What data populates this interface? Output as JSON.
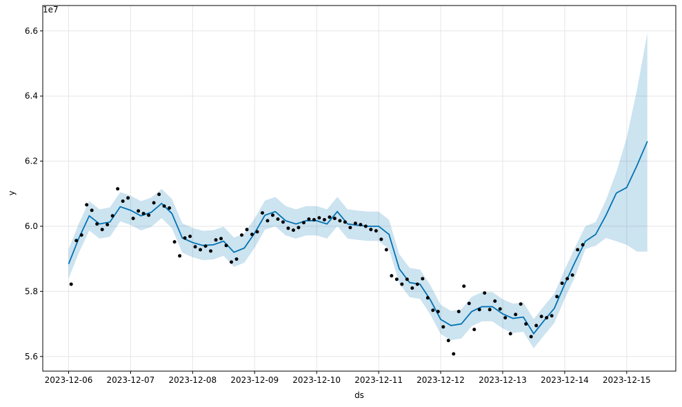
{
  "chart_data": {
    "type": "forecast",
    "x_label": "ds",
    "y_label": "y",
    "y_offset_label": "1e7",
    "xlim": [
      "2023-12-05 14:00",
      "2023-12-15 19:00"
    ],
    "xticks": [
      "2023-12-06",
      "2023-12-07",
      "2023-12-08",
      "2023-12-09",
      "2023-12-10",
      "2023-12-11",
      "2023-12-12",
      "2023-12-13",
      "2023-12-14",
      "2023-12-15"
    ],
    "ylim": [
      5.555,
      6.678
    ],
    "yticks": [
      5.6,
      5.8,
      {
        "value": 6,
        "label": "6.0"
      },
      6.2,
      6.4,
      6.6
    ],
    "grid": true,
    "forecast": {
      "color": "#0072B2",
      "x": [
        "2023-12-06 00:00",
        "2023-12-06 04:00",
        "2023-12-06 08:00",
        "2023-12-06 12:00",
        "2023-12-06 16:00",
        "2023-12-06 20:00",
        "2023-12-07 00:00",
        "2023-12-07 04:00",
        "2023-12-07 08:00",
        "2023-12-07 12:00",
        "2023-12-07 16:00",
        "2023-12-07 20:00",
        "2023-12-08 00:00",
        "2023-12-08 04:00",
        "2023-12-08 08:00",
        "2023-12-08 12:00",
        "2023-12-08 16:00",
        "2023-12-08 20:00",
        "2023-12-09 00:00",
        "2023-12-09 04:00",
        "2023-12-09 08:00",
        "2023-12-09 12:00",
        "2023-12-09 16:00",
        "2023-12-09 20:00",
        "2023-12-10 00:00",
        "2023-12-10 04:00",
        "2023-12-10 08:00",
        "2023-12-10 12:00",
        "2023-12-10 16:00",
        "2023-12-10 20:00",
        "2023-12-11 00:00",
        "2023-12-11 04:00",
        "2023-12-11 08:00",
        "2023-12-11 12:00",
        "2023-12-11 16:00",
        "2023-12-11 20:00",
        "2023-12-12 00:00",
        "2023-12-12 04:00",
        "2023-12-12 08:00",
        "2023-12-12 12:00",
        "2023-12-12 16:00",
        "2023-12-12 20:00",
        "2023-12-13 00:00",
        "2023-12-13 04:00",
        "2023-12-13 08:00",
        "2023-12-13 12:00",
        "2023-12-13 16:00",
        "2023-12-13 20:00",
        "2023-12-14 00:00",
        "2023-12-14 04:00",
        "2023-12-14 08:00",
        "2023-12-14 12:00",
        "2023-12-14 16:00",
        "2023-12-14 20:00",
        "2023-12-15 00:00",
        "2023-12-15 04:00",
        "2023-12-15 08:00"
      ],
      "values": [
        5.884,
        5.964,
        6.032,
        6.007,
        6.013,
        6.06,
        6.049,
        6.032,
        6.043,
        6.07,
        6.039,
        5.964,
        5.95,
        5.941,
        5.943,
        5.954,
        5.92,
        5.933,
        5.979,
        6.034,
        6.045,
        6.017,
        6.007,
        6.017,
        6.017,
        6.007,
        6.045,
        6.007,
        6.003,
        6.0,
        6.0,
        5.975,
        5.869,
        5.827,
        5.822,
        5.774,
        5.714,
        5.695,
        5.7,
        5.738,
        5.753,
        5.753,
        5.731,
        5.717,
        5.721,
        5.67,
        5.71,
        5.748,
        5.822,
        5.89,
        5.954,
        5.975,
        6.034,
        6.102,
        6.119,
        6.187,
        6.261
      ],
      "upper": [
        5.929,
        6.009,
        6.077,
        6.052,
        6.058,
        6.105,
        6.094,
        6.077,
        6.088,
        6.115,
        6.084,
        6.009,
        5.995,
        5.986,
        5.988,
        5.999,
        5.965,
        5.978,
        6.024,
        6.079,
        6.09,
        6.062,
        6.052,
        6.062,
        6.062,
        6.052,
        6.09,
        6.052,
        6.048,
        6.045,
        6.045,
        6.02,
        5.914,
        5.872,
        5.867,
        5.819,
        5.759,
        5.74,
        5.745,
        5.783,
        5.798,
        5.798,
        5.776,
        5.762,
        5.766,
        5.715,
        5.755,
        5.793,
        5.867,
        5.935,
        6.0,
        6.013,
        6.081,
        6.166,
        6.272,
        6.42,
        6.594
      ],
      "lower": [
        5.839,
        5.919,
        5.987,
        5.962,
        5.968,
        6.015,
        6.004,
        5.987,
        5.998,
        6.025,
        5.994,
        5.919,
        5.905,
        5.896,
        5.898,
        5.909,
        5.875,
        5.888,
        5.934,
        5.989,
        6.0,
        5.972,
        5.962,
        5.972,
        5.972,
        5.962,
        6.0,
        5.962,
        5.958,
        5.955,
        5.955,
        5.93,
        5.824,
        5.782,
        5.777,
        5.729,
        5.669,
        5.65,
        5.655,
        5.693,
        5.708,
        5.708,
        5.686,
        5.672,
        5.676,
        5.625,
        5.665,
        5.703,
        5.777,
        5.845,
        5.93,
        5.94,
        5.964,
        5.954,
        5.943,
        5.922,
        5.922
      ]
    },
    "observed": {
      "color": "#000000",
      "x": [
        "2023-12-06 01:00",
        "2023-12-06 03:00",
        "2023-12-06 05:00",
        "2023-12-06 07:00",
        "2023-12-06 09:00",
        "2023-12-06 11:00",
        "2023-12-06 13:00",
        "2023-12-06 15:00",
        "2023-12-06 17:00",
        "2023-12-06 19:00",
        "2023-12-06 21:00",
        "2023-12-06 23:00",
        "2023-12-07 01:00",
        "2023-12-07 03:00",
        "2023-12-07 05:00",
        "2023-12-07 07:00",
        "2023-12-07 09:00",
        "2023-12-07 11:00",
        "2023-12-07 13:00",
        "2023-12-07 15:00",
        "2023-12-07 17:00",
        "2023-12-07 19:00",
        "2023-12-07 21:00",
        "2023-12-07 23:00",
        "2023-12-08 01:00",
        "2023-12-08 03:00",
        "2023-12-08 05:00",
        "2023-12-08 07:00",
        "2023-12-08 09:00",
        "2023-12-08 11:00",
        "2023-12-08 13:00",
        "2023-12-08 15:00",
        "2023-12-08 17:00",
        "2023-12-08 19:00",
        "2023-12-08 21:00",
        "2023-12-08 23:00",
        "2023-12-09 01:00",
        "2023-12-09 03:00",
        "2023-12-09 05:00",
        "2023-12-09 07:00",
        "2023-12-09 09:00",
        "2023-12-09 11:00",
        "2023-12-09 13:00",
        "2023-12-09 15:00",
        "2023-12-09 17:00",
        "2023-12-09 19:00",
        "2023-12-09 21:00",
        "2023-12-09 23:00",
        "2023-12-10 01:00",
        "2023-12-10 03:00",
        "2023-12-10 05:00",
        "2023-12-10 07:00",
        "2023-12-10 09:00",
        "2023-12-10 11:00",
        "2023-12-10 13:00",
        "2023-12-10 15:00",
        "2023-12-10 17:00",
        "2023-12-10 19:00",
        "2023-12-10 21:00",
        "2023-12-10 23:00",
        "2023-12-11 01:00",
        "2023-12-11 03:00",
        "2023-12-11 05:00",
        "2023-12-11 07:00",
        "2023-12-11 09:00",
        "2023-12-11 11:00",
        "2023-12-11 13:00",
        "2023-12-11 15:00",
        "2023-12-11 17:00",
        "2023-12-11 19:00",
        "2023-12-11 21:00",
        "2023-12-11 23:00",
        "2023-12-12 01:00",
        "2023-12-12 03:00",
        "2023-12-12 05:00",
        "2023-12-12 07:00",
        "2023-12-12 09:00",
        "2023-12-12 11:00",
        "2023-12-12 13:00",
        "2023-12-12 15:00",
        "2023-12-12 17:00",
        "2023-12-12 19:00",
        "2023-12-12 21:00",
        "2023-12-12 23:00",
        "2023-12-13 01:00",
        "2023-12-13 03:00",
        "2023-12-13 05:00",
        "2023-12-13 07:00",
        "2023-12-13 09:00",
        "2023-12-13 11:00",
        "2023-12-13 13:00",
        "2023-12-13 15:00",
        "2023-12-13 17:00",
        "2023-12-13 19:00",
        "2023-12-13 21:00",
        "2023-12-13 23:00",
        "2023-12-14 01:00",
        "2023-12-14 03:00",
        "2023-12-14 05:00",
        "2023-12-14 07:00"
      ],
      "values": [
        5.822,
        5.956,
        5.973,
        6.066,
        6.049,
        6.007,
        5.99,
        6.005,
        6.032,
        6.115,
        6.077,
        6.087,
        6.024,
        6.047,
        6.039,
        6.034,
        6.072,
        6.098,
        6.062,
        6.056,
        5.952,
        5.909,
        5.964,
        5.969,
        5.937,
        5.928,
        5.939,
        5.924,
        5.958,
        5.962,
        5.941,
        5.89,
        5.899,
        5.973,
        5.99,
        5.975,
        5.983,
        6.041,
        6.017,
        6.034,
        6.022,
        6.013,
        5.994,
        5.988,
        5.996,
        6.011,
        6.022,
        6.02,
        6.026,
        6.02,
        6.028,
        6.024,
        6.017,
        6.013,
        5.996,
        6.009,
        6.005,
        6.0,
        5.99,
        5.986,
        5.96,
        5.928,
        5.848,
        5.837,
        5.822,
        5.837,
        5.81,
        5.822,
        5.839,
        5.78,
        5.742,
        5.738,
        5.691,
        5.649,
        5.608,
        5.738,
        5.816,
        5.763,
        5.683,
        5.744,
        5.795,
        5.744,
        5.77,
        5.746,
        5.719,
        5.67,
        5.729,
        5.761,
        5.7,
        5.661,
        5.695,
        5.723,
        5.719,
        5.725,
        5.784,
        5.825,
        5.839,
        5.85,
        5.928,
        5.943
      ]
    }
  }
}
